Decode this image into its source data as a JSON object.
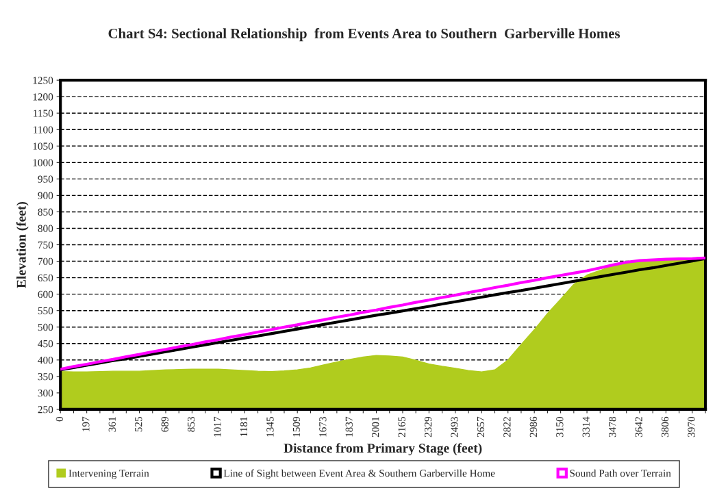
{
  "chart_data": {
    "type": "area",
    "title": "Chart S4: Sectional Relationship  from Events Area to Southern  Garberville Homes",
    "xlabel": "Distance from Primary Stage (feet)",
    "ylabel": "Elevation (feet)",
    "categories": [
      "0",
      null,
      "197",
      null,
      "361",
      null,
      "525",
      null,
      "689",
      null,
      "853",
      null,
      "1017",
      null,
      "1181",
      null,
      "1345",
      null,
      "1509",
      null,
      "1673",
      null,
      "1837",
      null,
      "2001",
      null,
      "2165",
      null,
      "2329",
      null,
      "2493",
      null,
      "2657",
      null,
      "2822",
      null,
      "2986",
      null,
      "3150",
      null,
      "3314",
      null,
      "3478",
      null,
      "3642",
      null,
      "3806",
      null,
      "3970",
      null
    ],
    "series": [
      {
        "name": "Intervening Terrain",
        "color": "#b0cc1e",
        "values": [
          365,
          364,
          364,
          365,
          366,
          366,
          366,
          368,
          370,
          371,
          372,
          372,
          372,
          370,
          368,
          366,
          365,
          367,
          370,
          376,
          385,
          394,
          402,
          409,
          414,
          412,
          409,
          399,
          388,
          381,
          375,
          368,
          364,
          370,
          400,
          447,
          492,
          541,
          585,
          630,
          658,
          672,
          688,
          696,
          701,
          703,
          705,
          706,
          707,
          708
        ]
      },
      {
        "name": "Line of Sight between Event Area & Southern Garberville Home",
        "type": "line",
        "color": "#000000",
        "values": [
          370,
          377,
          384,
          391,
          398,
          404,
          411,
          418,
          425,
          432,
          439,
          446,
          453,
          460,
          467,
          473,
          480,
          487,
          494,
          501,
          508,
          515,
          522,
          529,
          536,
          542,
          549,
          556,
          563,
          570,
          577,
          584,
          591,
          598,
          605,
          611,
          618,
          625,
          632,
          639,
          646,
          653,
          660,
          667,
          674,
          680,
          687,
          694,
          701,
          708
        ]
      },
      {
        "name": "Sound Path over Terrain",
        "type": "line",
        "color": "#ff00ff",
        "values": [
          372,
          380,
          387,
          395,
          402,
          410,
          417,
          425,
          432,
          440,
          447,
          455,
          462,
          470,
          477,
          485,
          492,
          500,
          507,
          515,
          522,
          530,
          537,
          545,
          552,
          560,
          567,
          575,
          582,
          590,
          597,
          605,
          612,
          620,
          627,
          635,
          642,
          650,
          657,
          664,
          671,
          680,
          689,
          697,
          702,
          704,
          706,
          707,
          708,
          710
        ]
      }
    ],
    "ylim": [
      250,
      1250
    ],
    "yticks": [
      250,
      300,
      350,
      400,
      450,
      500,
      550,
      600,
      650,
      700,
      750,
      800,
      850,
      900,
      950,
      1000,
      1050,
      1100,
      1150,
      1200,
      1250
    ],
    "grid": "y",
    "legend": "bottom",
    "marker": "none",
    "line_style": "solid"
  }
}
